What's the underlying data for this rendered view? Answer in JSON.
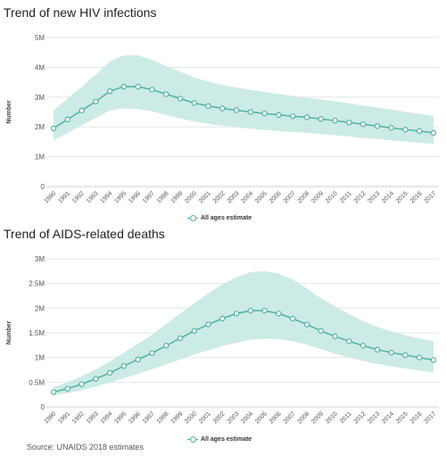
{
  "source_note": "Source: UNAIDS 2018 estimates",
  "chart_data": [
    {
      "type": "line",
      "title": "Trend of new HIV infections",
      "ylabel": "Number",
      "xlabel": "",
      "y_ticks": [
        "0",
        "1M",
        "2M",
        "3M",
        "4M",
        "5M"
      ],
      "ylim": [
        0,
        5000000
      ],
      "x": [
        "1990",
        "1991",
        "1992",
        "1993",
        "1994",
        "1995",
        "1996",
        "1997",
        "1998",
        "1999",
        "2000",
        "2001",
        "2002",
        "2003",
        "2004",
        "2005",
        "2006",
        "2007",
        "2008",
        "2009",
        "2010",
        "2011",
        "2012",
        "2013",
        "2014",
        "2015",
        "2016",
        "2017"
      ],
      "grid": true,
      "legend_position": "bottom-center",
      "color": "#4fb3a4",
      "band_color": "#cdebe6",
      "series": [
        {
          "name": "All ages estimate",
          "values": [
            1950000,
            2250000,
            2550000,
            2850000,
            3200000,
            3350000,
            3350000,
            3250000,
            3100000,
            2950000,
            2800000,
            2700000,
            2620000,
            2560000,
            2500000,
            2450000,
            2400000,
            2360000,
            2320000,
            2270000,
            2210000,
            2150000,
            2090000,
            2030000,
            1970000,
            1910000,
            1860000,
            1800000
          ],
          "lower": [
            1550000,
            1800000,
            2050000,
            2300000,
            2550000,
            2620000,
            2600000,
            2520000,
            2400000,
            2280000,
            2180000,
            2100000,
            2040000,
            1990000,
            1940000,
            1900000,
            1860000,
            1830000,
            1800000,
            1760000,
            1720000,
            1680000,
            1630000,
            1590000,
            1550000,
            1510000,
            1470000,
            1430000
          ],
          "upper": [
            2550000,
            2950000,
            3350000,
            3750000,
            4200000,
            4400000,
            4400000,
            4250000,
            4050000,
            3850000,
            3650000,
            3520000,
            3400000,
            3320000,
            3240000,
            3170000,
            3100000,
            3040000,
            2980000,
            2920000,
            2860000,
            2790000,
            2720000,
            2650000,
            2580000,
            2510000,
            2440000,
            2370000
          ]
        }
      ]
    },
    {
      "type": "line",
      "title": "Trend of AIDS-related deaths",
      "ylabel": "Number",
      "xlabel": "",
      "y_ticks": [
        "0",
        "0.5M",
        "1M",
        "1.5M",
        "2M",
        "2.5M",
        "3M"
      ],
      "ylim": [
        0,
        3000000
      ],
      "x": [
        "1990",
        "1991",
        "1992",
        "1993",
        "1994",
        "1995",
        "1996",
        "1997",
        "1998",
        "1999",
        "2000",
        "2001",
        "2002",
        "2003",
        "2004",
        "2005",
        "2006",
        "2007",
        "2008",
        "2009",
        "2010",
        "2011",
        "2012",
        "2013",
        "2014",
        "2015",
        "2016",
        "2017"
      ],
      "grid": true,
      "legend_position": "bottom-center",
      "color": "#4fb3a4",
      "band_color": "#cdebe6",
      "series": [
        {
          "name": "All ages estimate",
          "values": [
            300000,
            370000,
            460000,
            570000,
            690000,
            830000,
            960000,
            1090000,
            1240000,
            1390000,
            1540000,
            1670000,
            1790000,
            1890000,
            1950000,
            1950000,
            1890000,
            1790000,
            1670000,
            1540000,
            1430000,
            1330000,
            1240000,
            1160000,
            1100000,
            1050000,
            1000000,
            950000
          ],
          "lower": [
            230000,
            280000,
            340000,
            410000,
            490000,
            580000,
            670000,
            760000,
            860000,
            960000,
            1060000,
            1150000,
            1230000,
            1300000,
            1360000,
            1380000,
            1370000,
            1330000,
            1260000,
            1170000,
            1080000,
            1000000,
            930000,
            870000,
            820000,
            780000,
            740000,
            700000
          ],
          "upper": [
            400000,
            500000,
            620000,
            760000,
            920000,
            1100000,
            1280000,
            1460000,
            1680000,
            1890000,
            2100000,
            2300000,
            2480000,
            2630000,
            2730000,
            2750000,
            2700000,
            2580000,
            2400000,
            2200000,
            2040000,
            1880000,
            1740000,
            1620000,
            1530000,
            1450000,
            1390000,
            1330000
          ]
        }
      ]
    }
  ]
}
